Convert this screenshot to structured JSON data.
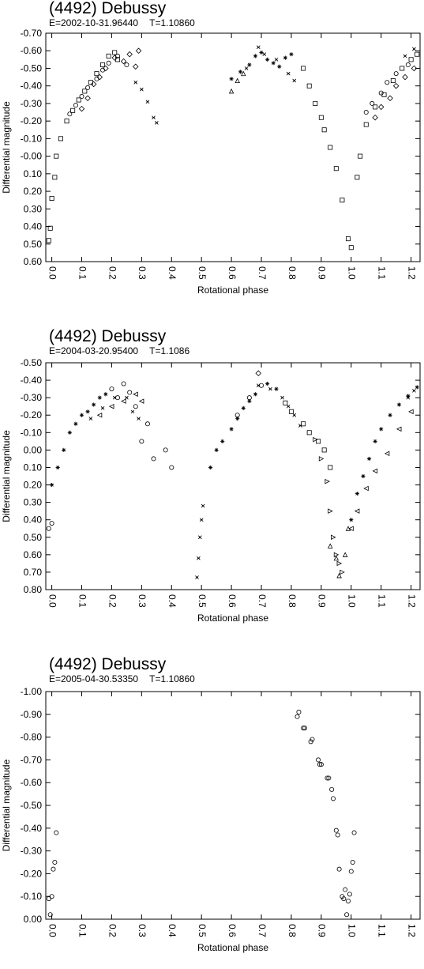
{
  "chart_data": [
    {
      "type": "scatter",
      "title": "(4492) Debussy",
      "subtitle_epoch": "E=2002-10-31.96440",
      "subtitle_period": "T=1.10860",
      "xlabel": "Rotational phase",
      "ylabel": "Differential magnitude",
      "xlim": [
        -0.02,
        1.23
      ],
      "ylim": [
        -0.7,
        0.6
      ],
      "y_inverted": true,
      "xticks": [
        "0.0",
        "0.1",
        "0.2",
        "0.3",
        "0.4",
        "0.5",
        "0.6",
        "0.7",
        "0.8",
        "0.9",
        "1.0",
        "1.1",
        "1.2"
      ],
      "yticks": [
        "-0.70",
        "-0.60",
        "-0.50",
        "-0.40",
        "-0.30",
        "-0.20",
        "-0.10",
        "-0.00",
        "0.10",
        "0.20",
        "0.30",
        "0.40",
        "0.50",
        "0.60"
      ],
      "grid": false,
      "marker_symbols": [
        "square",
        "diamond",
        "circle",
        "star",
        "cross",
        "triangle"
      ],
      "series": [
        {
          "marker": "square",
          "points": [
            [
              -0.01,
              0.48
            ],
            [
              -0.005,
              0.41
            ],
            [
              0.0,
              0.24
            ],
            [
              0.01,
              0.12
            ],
            [
              0.015,
              0.0
            ],
            [
              0.03,
              -0.1
            ],
            [
              0.05,
              -0.2
            ],
            [
              0.07,
              -0.26
            ],
            [
              0.09,
              -0.32
            ],
            [
              0.11,
              -0.37
            ],
            [
              0.13,
              -0.42
            ],
            [
              0.15,
              -0.47
            ],
            [
              0.17,
              -0.52
            ],
            [
              0.19,
              -0.57
            ],
            [
              0.21,
              -0.59
            ],
            [
              0.22,
              -0.55
            ],
            [
              0.84,
              -0.5
            ],
            [
              0.86,
              -0.4
            ],
            [
              0.88,
              -0.3
            ],
            [
              0.9,
              -0.22
            ],
            [
              0.91,
              -0.15
            ],
            [
              0.93,
              -0.05
            ],
            [
              0.95,
              0.07
            ],
            [
              0.97,
              0.25
            ],
            [
              0.99,
              0.47
            ],
            [
              1.0,
              0.52
            ],
            [
              1.02,
              0.12
            ],
            [
              1.03,
              0.0
            ],
            [
              1.05,
              -0.18
            ],
            [
              1.08,
              -0.28
            ],
            [
              1.11,
              -0.35
            ],
            [
              1.14,
              -0.43
            ],
            [
              1.17,
              -0.5
            ],
            [
              1.2,
              -0.55
            ],
            [
              1.22,
              -0.58
            ]
          ]
        },
        {
          "marker": "diamond",
          "points": [
            [
              0.1,
              -0.27
            ],
            [
              0.12,
              -0.33
            ],
            [
              0.14,
              -0.41
            ],
            [
              0.16,
              -0.45
            ],
            [
              0.18,
              -0.5
            ],
            [
              0.21,
              -0.56
            ],
            [
              0.24,
              -0.54
            ],
            [
              0.26,
              -0.58
            ],
            [
              0.28,
              -0.51
            ],
            [
              0.29,
              -0.6
            ],
            [
              1.08,
              -0.22
            ],
            [
              1.1,
              -0.28
            ],
            [
              1.13,
              -0.33
            ],
            [
              1.15,
              -0.4
            ],
            [
              1.18,
              -0.45
            ],
            [
              1.21,
              -0.5
            ]
          ]
        },
        {
          "marker": "circle",
          "points": [
            [
              0.06,
              -0.24
            ],
            [
              0.08,
              -0.29
            ],
            [
              0.1,
              -0.34
            ],
            [
              0.12,
              -0.39
            ],
            [
              0.15,
              -0.44
            ],
            [
              0.17,
              -0.49
            ],
            [
              0.19,
              -0.53
            ],
            [
              0.22,
              -0.57
            ],
            [
              0.25,
              -0.52
            ],
            [
              1.05,
              -0.25
            ],
            [
              1.07,
              -0.3
            ],
            [
              1.1,
              -0.36
            ],
            [
              1.12,
              -0.42
            ],
            [
              1.15,
              -0.47
            ],
            [
              1.19,
              -0.52
            ]
          ]
        },
        {
          "marker": "star",
          "points": [
            [
              0.6,
              -0.44
            ],
            [
              0.63,
              -0.48
            ],
            [
              0.66,
              -0.52
            ],
            [
              0.68,
              -0.57
            ],
            [
              0.7,
              -0.59
            ],
            [
              0.72,
              -0.55
            ],
            [
              0.74,
              -0.53
            ],
            [
              0.76,
              -0.51
            ],
            [
              0.78,
              -0.56
            ],
            [
              0.8,
              -0.58
            ]
          ]
        },
        {
          "marker": "cross",
          "points": [
            [
              0.28,
              -0.42
            ],
            [
              0.3,
              -0.38
            ],
            [
              0.32,
              -0.31
            ],
            [
              0.34,
              -0.22
            ],
            [
              0.35,
              -0.19
            ],
            [
              0.65,
              -0.5
            ],
            [
              0.69,
              -0.62
            ],
            [
              0.71,
              -0.58
            ],
            [
              0.75,
              -0.55
            ],
            [
              0.79,
              -0.47
            ],
            [
              0.81,
              -0.43
            ],
            [
              1.18,
              -0.57
            ],
            [
              1.21,
              -0.61
            ]
          ]
        },
        {
          "marker": "triangle",
          "points": [
            [
              0.6,
              -0.37
            ],
            [
              0.62,
              -0.43
            ],
            [
              0.64,
              -0.47
            ]
          ]
        }
      ]
    },
    {
      "type": "scatter",
      "title": "(4492) Debussy",
      "subtitle_epoch": "E=2004-03-20.95400",
      "subtitle_period": "T=1.1086",
      "xlabel": "Rotational phase",
      "ylabel": "Differential magnitude",
      "xlim": [
        -0.02,
        1.23
      ],
      "ylim": [
        -0.5,
        0.8
      ],
      "y_inverted": true,
      "xticks": [
        "0.0",
        "0.1",
        "0.2",
        "0.3",
        "0.4",
        "0.5",
        "0.6",
        "0.7",
        "0.8",
        "0.9",
        "1.0",
        "1.1",
        "1.2"
      ],
      "yticks": [
        "-0.50",
        "-0.40",
        "-0.30",
        "-0.20",
        "-0.10",
        "0.00",
        "0.10",
        "0.20",
        "0.30",
        "0.40",
        "0.50",
        "0.60",
        "0.70",
        "0.80"
      ],
      "grid": false,
      "marker_symbols": [
        "circle",
        "star",
        "triangle-left",
        "cross",
        "square",
        "triangle-right",
        "triangle",
        "diamond"
      ],
      "series": [
        {
          "marker": "circle",
          "points": [
            [
              -0.01,
              0.45
            ],
            [
              0.0,
              0.42
            ],
            [
              0.2,
              -0.35
            ],
            [
              0.22,
              -0.3
            ],
            [
              0.24,
              -0.38
            ],
            [
              0.26,
              -0.33
            ],
            [
              0.28,
              -0.25
            ],
            [
              0.3,
              -0.05
            ],
            [
              0.32,
              -0.15
            ],
            [
              0.34,
              0.05
            ],
            [
              0.38,
              0.0
            ],
            [
              0.4,
              0.1
            ],
            [
              0.62,
              -0.2
            ],
            [
              0.66,
              -0.3
            ],
            [
              0.7,
              -0.37
            ]
          ]
        },
        {
          "marker": "star",
          "points": [
            [
              0.0,
              0.2
            ],
            [
              0.02,
              0.1
            ],
            [
              0.04,
              0.0
            ],
            [
              0.06,
              -0.1
            ],
            [
              0.08,
              -0.15
            ],
            [
              0.1,
              -0.2
            ],
            [
              0.12,
              -0.22
            ],
            [
              0.14,
              -0.26
            ],
            [
              0.16,
              -0.3
            ],
            [
              0.18,
              -0.32
            ],
            [
              0.53,
              0.1
            ],
            [
              0.55,
              0.0
            ],
            [
              0.57,
              -0.05
            ],
            [
              0.6,
              -0.12
            ],
            [
              0.62,
              -0.18
            ],
            [
              0.64,
              -0.24
            ],
            [
              0.66,
              -0.28
            ],
            [
              0.68,
              -0.32
            ],
            [
              0.72,
              -0.38
            ],
            [
              0.75,
              -0.35
            ],
            [
              1.0,
              0.4
            ],
            [
              1.02,
              0.25
            ],
            [
              1.04,
              0.15
            ],
            [
              1.06,
              0.05
            ],
            [
              1.08,
              -0.05
            ],
            [
              1.1,
              -0.12
            ],
            [
              1.13,
              -0.2
            ],
            [
              1.16,
              -0.26
            ],
            [
              1.19,
              -0.31
            ],
            [
              1.22,
              -0.36
            ]
          ]
        },
        {
          "marker": "triangle-left",
          "points": [
            [
              0.16,
              -0.2
            ],
            [
              0.2,
              -0.25
            ],
            [
              0.24,
              -0.28
            ],
            [
              0.28,
              -0.32
            ],
            [
              0.3,
              -0.28
            ],
            [
              1.0,
              0.45
            ],
            [
              1.02,
              0.35
            ],
            [
              1.05,
              0.22
            ],
            [
              1.08,
              0.12
            ],
            [
              1.12,
              0.02
            ],
            [
              1.16,
              -0.12
            ],
            [
              1.2,
              -0.22
            ]
          ]
        },
        {
          "marker": "cross",
          "points": [
            [
              0.13,
              -0.18
            ],
            [
              0.17,
              -0.24
            ],
            [
              0.21,
              -0.3
            ],
            [
              0.25,
              -0.3
            ],
            [
              0.27,
              -0.22
            ],
            [
              0.29,
              -0.18
            ],
            [
              0.485,
              0.73
            ],
            [
              0.49,
              0.62
            ],
            [
              0.495,
              0.5
            ],
            [
              0.5,
              0.4
            ],
            [
              0.505,
              0.32
            ],
            [
              0.69,
              -0.37
            ],
            [
              0.73,
              -0.35
            ],
            [
              0.77,
              -0.3
            ],
            [
              0.79,
              -0.25
            ],
            [
              0.81,
              -0.2
            ],
            [
              0.83,
              -0.14
            ],
            [
              1.19,
              -0.3
            ],
            [
              1.21,
              -0.34
            ]
          ]
        },
        {
          "marker": "square",
          "points": [
            [
              0.78,
              -0.27
            ],
            [
              0.8,
              -0.22
            ],
            [
              0.84,
              -0.15
            ],
            [
              0.86,
              -0.1
            ],
            [
              0.89,
              -0.05
            ],
            [
              0.91,
              0.0
            ],
            [
              0.93,
              0.1
            ]
          ]
        },
        {
          "marker": "triangle-right",
          "points": [
            [
              0.88,
              -0.06
            ],
            [
              0.9,
              0.05
            ],
            [
              0.92,
              0.18
            ],
            [
              0.93,
              0.35
            ],
            [
              0.94,
              0.5
            ],
            [
              0.95,
              0.6
            ],
            [
              0.96,
              0.65
            ],
            [
              0.97,
              0.7
            ]
          ]
        },
        {
          "marker": "triangle",
          "points": [
            [
              0.93,
              0.55
            ],
            [
              0.95,
              0.62
            ],
            [
              0.96,
              0.72
            ],
            [
              0.98,
              0.6
            ],
            [
              0.99,
              0.45
            ]
          ]
        },
        {
          "marker": "diamond",
          "points": [
            [
              0.69,
              -0.44
            ]
          ]
        }
      ]
    },
    {
      "type": "scatter",
      "title": "(4492) Debussy",
      "subtitle_epoch": "E=2005-04-30.53350",
      "subtitle_period": "T=1.10860",
      "xlabel": "Rotational phase",
      "ylabel": "Differential magnitude",
      "xlim": [
        -0.02,
        1.23
      ],
      "ylim": [
        -1.0,
        0.0
      ],
      "y_inverted": false,
      "xticks": [
        "0.0",
        "0.1",
        "0.2",
        "0.3",
        "0.4",
        "0.5",
        "0.6",
        "0.7",
        "0.8",
        "0.9",
        "1.0",
        "1.1",
        "1.2"
      ],
      "yticks": [
        "-1.00",
        "-0.90",
        "-0.80",
        "-0.70",
        "-0.60",
        "-0.50",
        "-0.40",
        "-0.30",
        "-0.20",
        "-0.10",
        "0.00"
      ],
      "grid": false,
      "marker_symbols": [
        "circle"
      ],
      "series": [
        {
          "marker": "circle",
          "points": [
            [
              -0.01,
              -0.09
            ],
            [
              -0.005,
              -0.02
            ],
            [
              0.0,
              -0.1
            ],
            [
              0.005,
              -0.22
            ],
            [
              0.01,
              -0.25
            ],
            [
              0.015,
              -0.38
            ],
            [
              0.82,
              -0.89
            ],
            [
              0.825,
              -0.91
            ],
            [
              0.84,
              -0.84
            ],
            [
              0.845,
              -0.84
            ],
            [
              0.865,
              -0.78
            ],
            [
              0.87,
              -0.79
            ],
            [
              0.89,
              -0.7
            ],
            [
              0.895,
              -0.68
            ],
            [
              0.9,
              -0.68
            ],
            [
              0.92,
              -0.62
            ],
            [
              0.925,
              -0.62
            ],
            [
              0.935,
              -0.57
            ],
            [
              0.94,
              -0.53
            ],
            [
              0.95,
              -0.39
            ],
            [
              0.955,
              -0.37
            ],
            [
              0.96,
              -0.22
            ],
            [
              0.97,
              -0.1
            ],
            [
              0.975,
              -0.09
            ],
            [
              0.98,
              -0.13
            ],
            [
              0.985,
              -0.02
            ],
            [
              0.99,
              -0.08
            ],
            [
              0.995,
              -0.11
            ],
            [
              1.0,
              -0.21
            ],
            [
              1.005,
              -0.25
            ],
            [
              1.01,
              -0.38
            ]
          ]
        }
      ]
    }
  ]
}
